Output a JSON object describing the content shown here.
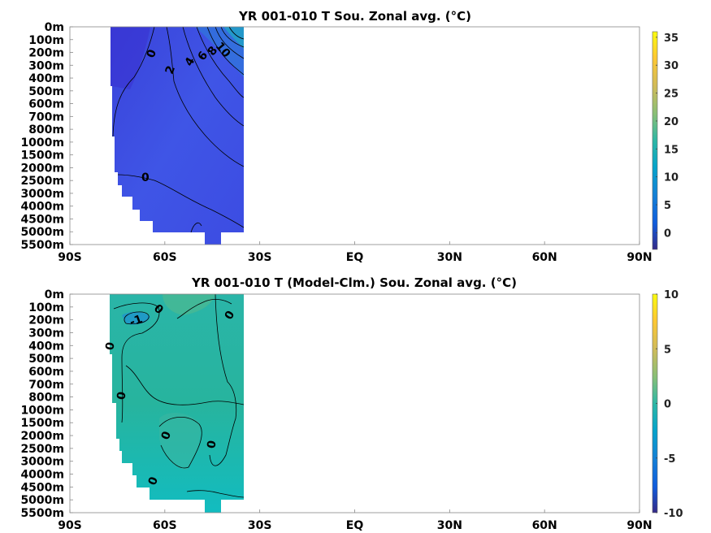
{
  "chart_data": [
    {
      "type": "heatmap",
      "title": "YR 001-010 T Sou. Zonal avg. (°C)",
      "x_ticks": [
        "90S",
        "60S",
        "30S",
        "EQ",
        "30N",
        "60N",
        "90N"
      ],
      "x_values": [
        -90,
        -60,
        -30,
        0,
        30,
        60,
        90
      ],
      "xlim": [
        -90,
        90
      ],
      "y_ticks": [
        "0m",
        "100m",
        "200m",
        "300m",
        "400m",
        "500m",
        "600m",
        "700m",
        "800m",
        "1000m",
        "1500m",
        "2000m",
        "2500m",
        "3000m",
        "4000m",
        "4500m",
        "5000m",
        "5500m"
      ],
      "data_lat_range": [
        -78,
        -35
      ],
      "colorbar": {
        "ticks": [
          "35",
          "30",
          "25",
          "20",
          "15",
          "10",
          "5",
          "0"
        ],
        "values": [
          35,
          30,
          25,
          20,
          15,
          10,
          5,
          0
        ],
        "range": [
          -3,
          36
        ]
      },
      "contour_labels": [
        "0",
        "2",
        "4",
        "6",
        "8",
        "10",
        "0"
      ]
    },
    {
      "type": "heatmap",
      "title": "YR 001-010 T (Model-Clm.) Sou. Zonal avg. (°C)",
      "x_ticks": [
        "90S",
        "60S",
        "30S",
        "EQ",
        "30N",
        "60N",
        "90N"
      ],
      "x_values": [
        -90,
        -60,
        -30,
        0,
        30,
        60,
        90
      ],
      "xlim": [
        -90,
        90
      ],
      "y_ticks": [
        "0m",
        "100m",
        "200m",
        "300m",
        "400m",
        "500m",
        "600m",
        "700m",
        "800m",
        "1000m",
        "1500m",
        "2000m",
        "2500m",
        "3000m",
        "4000m",
        "4500m",
        "5000m",
        "5500m"
      ],
      "data_lat_range": [
        -78,
        -35
      ],
      "colorbar": {
        "ticks": [
          "10",
          "5",
          "0",
          "-5",
          "-10"
        ],
        "values": [
          10,
          5,
          0,
          -5,
          -10
        ],
        "range": [
          -10,
          10
        ]
      },
      "contour_labels": [
        "0",
        "-1",
        "0",
        "0",
        "0",
        "0",
        "0",
        "0"
      ]
    }
  ]
}
